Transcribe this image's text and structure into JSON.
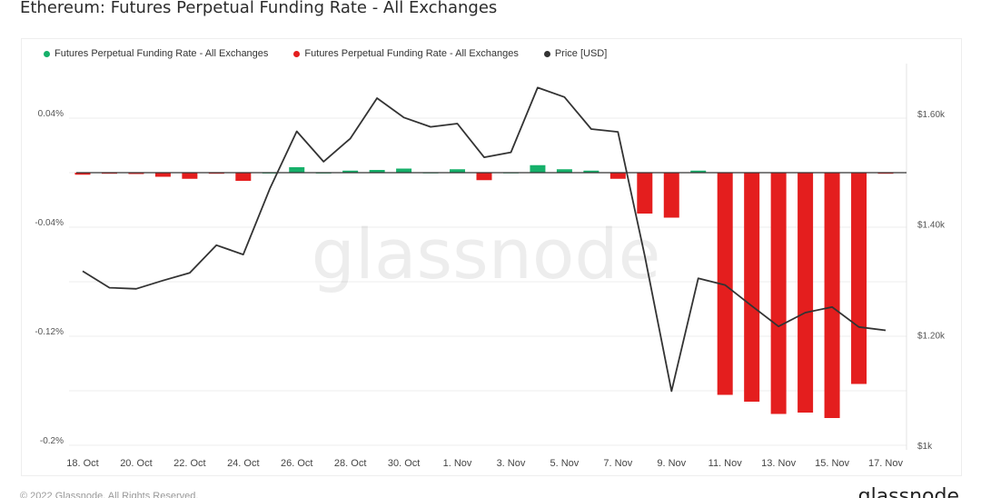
{
  "header": {
    "title": "Ethereum: Futures Perpetual Funding Rate - All Exchanges"
  },
  "legend": [
    {
      "label": "Futures Perpetual Funding Rate - All Exchanges",
      "color": "#16b06a"
    },
    {
      "label": "Futures Perpetual Funding Rate - All Exchanges",
      "color": "#e41e1e"
    },
    {
      "label": "Price [USD]",
      "color": "#333333"
    }
  ],
  "watermark": "glassnode",
  "footer": {
    "copyright": "© 2022 Glassnode. All Rights Reserved.",
    "logo": "glassnode"
  },
  "chart_data": {
    "type": "bar",
    "title": "Ethereum: Futures Perpetual Funding Rate - All Exchanges",
    "x": [
      "18 Oct",
      "19 Oct",
      "20 Oct",
      "21 Oct",
      "22 Oct",
      "23 Oct",
      "24 Oct",
      "25 Oct",
      "26 Oct",
      "27 Oct",
      "28 Oct",
      "29 Oct",
      "30 Oct",
      "31 Oct",
      "1 Nov",
      "2 Nov",
      "3 Nov",
      "4 Nov",
      "5 Nov",
      "6 Nov",
      "7 Nov",
      "8 Nov",
      "9 Nov",
      "10 Nov",
      "11 Nov",
      "12 Nov",
      "13 Nov",
      "14 Nov",
      "15 Nov",
      "16 Nov",
      "17 Nov"
    ],
    "x_tick_labels": [
      "18. Oct",
      "20. Oct",
      "22. Oct",
      "24. Oct",
      "26. Oct",
      "28. Oct",
      "30. Oct",
      "1. Nov",
      "3. Nov",
      "5. Nov",
      "7. Nov",
      "9. Nov",
      "11. Nov",
      "13. Nov",
      "15. Nov",
      "17. Nov"
    ],
    "left_axis": {
      "ticks": [
        0.04,
        -0.04,
        -0.12,
        -0.2
      ],
      "tick_labels": [
        "0.04%",
        "-0.04%",
        "-0.12%",
        "-0.2%"
      ],
      "range": [
        -0.2,
        0.08
      ]
    },
    "right_axis": {
      "ticks": [
        1600,
        1400,
        1200,
        1000
      ],
      "tick_labels": [
        "$1.60k",
        "$1.40k",
        "$1.20k",
        "$1k"
      ],
      "range": [
        1000,
        1700
      ]
    },
    "series": [
      {
        "name": "Futures Perpetual Funding Rate - All Exchanges",
        "kind": "bar",
        "color_positive": "#16b06a",
        "color_negative": "#e41e1e",
        "values": [
          -0.0015,
          -0.0005,
          -0.001,
          -0.003,
          -0.0045,
          -0.0005,
          -0.006,
          0.0002,
          0.004,
          0.0002,
          0.0015,
          0.002,
          0.003,
          0.0003,
          0.0025,
          -0.0055,
          0.0003,
          0.0055,
          0.0025,
          0.0015,
          -0.0045,
          -0.03,
          -0.033,
          0.0015,
          -0.163,
          -0.168,
          -0.177,
          -0.176,
          -0.18,
          -0.155,
          -0.0005
        ]
      },
      {
        "name": "Price [USD]",
        "kind": "line",
        "color": "#333333",
        "values": [
          1315,
          1285,
          1283,
          1298,
          1312,
          1362,
          1345,
          1465,
          1568,
          1513,
          1555,
          1628,
          1593,
          1576,
          1582,
          1521,
          1530,
          1647,
          1630,
          1572,
          1567,
          1343,
          1098,
          1302,
          1290,
          1252,
          1215,
          1240,
          1250,
          1214,
          1208
        ]
      }
    ],
    "grid": true,
    "legend_position": "top-left"
  }
}
